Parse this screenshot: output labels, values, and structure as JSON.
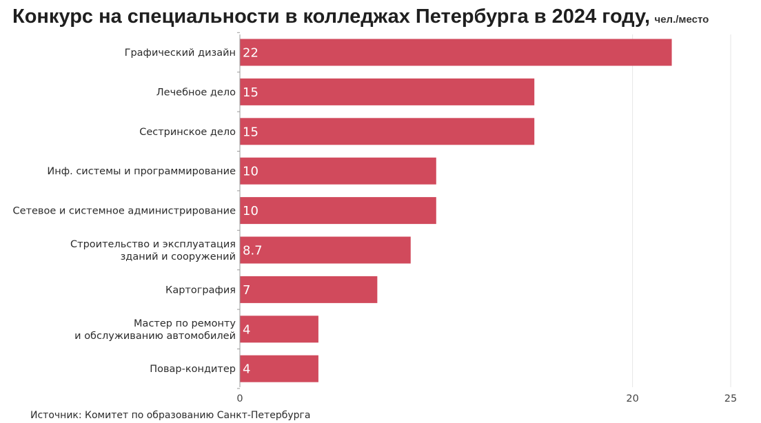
{
  "title": "Конкурс на специальности в колледжах Петербурга в 2024 году,",
  "unit": "чел./место",
  "source": "Источник: Комитет по образованию Санкт-Петербурга",
  "colors": {
    "bar": "#d14a5c",
    "grid": "#e6e6e6",
    "axis": "#999999"
  },
  "chart_data": {
    "type": "bar",
    "orientation": "horizontal",
    "categories": [
      [
        "Графический дизайн"
      ],
      [
        "Лечебное дело"
      ],
      [
        "Сестринское дело"
      ],
      [
        "Инф. системы и программирование"
      ],
      [
        "Сетевое и системное администрирование"
      ],
      [
        "Строительство и эксплуатация",
        "зданий и сооружений"
      ],
      [
        "Картография"
      ],
      [
        "Мастер по ремонту",
        "и обслуживанию автомобилей"
      ],
      [
        "Повар-кондитер"
      ]
    ],
    "values": [
      22,
      15,
      15,
      10,
      10,
      8.7,
      7,
      4,
      4
    ],
    "value_labels": [
      "22",
      "15",
      "15",
      "10",
      "10",
      "8.7",
      "7",
      "4",
      "4"
    ],
    "xlim": [
      0,
      25
    ],
    "xticks": [
      0,
      20,
      25
    ],
    "xtick_labels": [
      "0",
      "20",
      "25"
    ],
    "grid": true
  }
}
